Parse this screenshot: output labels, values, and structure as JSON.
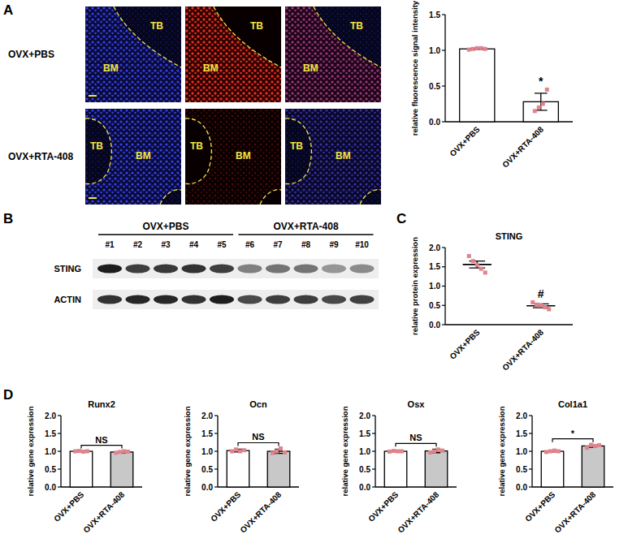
{
  "chart_data": [
    {
      "type": "bar",
      "ylabel": "relative fluorescence signal intensity",
      "categories": [
        "OVX+PBS",
        "OVX+RTA-408"
      ],
      "values": [
        1.02,
        0.28
      ],
      "errors": [
        0.01,
        0.12
      ],
      "points": [
        [
          1.01,
          1.02,
          1.03,
          1.03,
          1.02
        ],
        [
          0.15,
          0.2,
          0.25,
          0.45
        ]
      ],
      "colors": [
        "#ffffff",
        "#ffffff"
      ],
      "color": "#e0848c",
      "marker": "square",
      "ylim": [
        0,
        1.5
      ],
      "yticks": [
        {
          "value": 0,
          "label": "0.0"
        },
        {
          "value": 0.5,
          "label": "0.5"
        },
        {
          "value": 1,
          "label": "1.0"
        },
        {
          "value": 1.5,
          "label": "1.5"
        }
      ],
      "annotation": {
        "text": "*",
        "categories": [
          "OVX+RTA-408"
        ]
      }
    },
    {
      "type": "scatter",
      "title": "STING",
      "ylabel": "relative protein expression",
      "categories": [
        "OVX+PBS",
        "OVX+RTA-408"
      ],
      "values": [
        1.56,
        0.49
      ],
      "errors": [
        0.09,
        0.05
      ],
      "points": [
        [
          1.78,
          1.65,
          1.55,
          1.45,
          1.35
        ],
        [
          0.58,
          0.52,
          0.5,
          0.45,
          0.4
        ]
      ],
      "color": "#e0848c",
      "marker": "square",
      "ylim": [
        0,
        2
      ],
      "yticks": [
        {
          "value": 0,
          "label": "0.0"
        },
        {
          "value": 0.5,
          "label": "0.5"
        },
        {
          "value": 1,
          "label": "1.0"
        },
        {
          "value": 1.5,
          "label": "1.5"
        },
        {
          "value": 2,
          "label": "2.0"
        }
      ],
      "annotation": {
        "text": "#",
        "categories": [
          "OVX+RTA-408"
        ]
      }
    },
    {
      "type": "bar",
      "title": "Runx2",
      "ylabel": "relative gene expression",
      "categories": [
        "OVX+PBS",
        "OVX+RTA-408"
      ],
      "values": [
        1.0,
        0.98
      ],
      "errors": [
        0.01,
        0.03
      ],
      "points": [
        [
          1.0,
          1.01,
          0.99,
          1.0
        ],
        [
          0.96,
          0.98,
          1.0,
          0.99
        ]
      ],
      "colors": [
        "#ffffff",
        "#c8c8c8"
      ],
      "color": "#e0848c",
      "marker": "square",
      "ylim": [
        0,
        2
      ],
      "yticks": [
        {
          "value": 0,
          "label": "0.0"
        },
        {
          "value": 0.5,
          "label": "0.5"
        },
        {
          "value": 1,
          "label": "1.0"
        },
        {
          "value": 1.5,
          "label": "1.5"
        },
        {
          "value": 2,
          "label": "2.0"
        }
      ],
      "annotation": {
        "text": "NS",
        "categories": [
          "OVX+PBS",
          "OVX+RTA-408"
        ]
      }
    },
    {
      "type": "bar",
      "title": "Ocn",
      "ylabel": "relative gene expression",
      "categories": [
        "OVX+PBS",
        "OVX+RTA-408"
      ],
      "values": [
        1.02,
        1.0
      ],
      "errors": [
        0.04,
        0.06
      ],
      "points": [
        [
          1.0,
          1.05,
          1.0,
          1.03
        ],
        [
          0.95,
          1.0,
          1.08,
          0.97
        ]
      ],
      "colors": [
        "#ffffff",
        "#c8c8c8"
      ],
      "color": "#e0848c",
      "marker": "square",
      "ylim": [
        0,
        2
      ],
      "yticks": [
        {
          "value": 0,
          "label": "0.0"
        },
        {
          "value": 0.5,
          "label": "0.5"
        },
        {
          "value": 1,
          "label": "1.0"
        },
        {
          "value": 1.5,
          "label": "1.5"
        },
        {
          "value": 2,
          "label": "2.0"
        }
      ],
      "annotation": {
        "text": "NS",
        "categories": [
          "OVX+PBS",
          "OVX+RTA-408"
        ]
      }
    },
    {
      "type": "bar",
      "title": "Osx",
      "ylabel": "relative gene expression",
      "categories": [
        "OVX+PBS",
        "OVX+RTA-408"
      ],
      "values": [
        1.0,
        1.01
      ],
      "errors": [
        0.02,
        0.05
      ],
      "points": [
        [
          0.99,
          1.01,
          1.0,
          1.0
        ],
        [
          0.97,
          1.0,
          1.05,
          1.02
        ]
      ],
      "colors": [
        "#ffffff",
        "#c8c8c8"
      ],
      "color": "#e0848c",
      "marker": "square",
      "ylim": [
        0,
        2
      ],
      "yticks": [
        {
          "value": 0,
          "label": "0.0"
        },
        {
          "value": 0.5,
          "label": "0.5"
        },
        {
          "value": 1,
          "label": "1.0"
        },
        {
          "value": 1.5,
          "label": "1.5"
        },
        {
          "value": 2,
          "label": "2.0"
        }
      ],
      "annotation": {
        "text": "NS",
        "categories": [
          "OVX+PBS",
          "OVX+RTA-408"
        ]
      }
    },
    {
      "type": "bar",
      "title": "Col1a1",
      "ylabel": "relative gene expression",
      "categories": [
        "OVX+PBS",
        "OVX+RTA-408"
      ],
      "values": [
        1.0,
        1.15
      ],
      "errors": [
        0.02,
        0.04
      ],
      "points": [
        [
          0.98,
          1.0,
          1.02,
          1.0
        ],
        [
          1.1,
          1.18,
          1.15,
          1.17
        ]
      ],
      "colors": [
        "#ffffff",
        "#c8c8c8"
      ],
      "color": "#e0848c",
      "marker": "square",
      "ylim": [
        0,
        2
      ],
      "yticks": [
        {
          "value": 0,
          "label": "0.0"
        },
        {
          "value": 0.5,
          "label": "0.5"
        },
        {
          "value": 1,
          "label": "1.0"
        },
        {
          "value": 1.5,
          "label": "1.5"
        },
        {
          "value": 2,
          "label": "2.0"
        }
      ],
      "annotation": {
        "text": "*",
        "categories": [
          "OVX+PBS",
          "OVX+RTA-408"
        ]
      }
    }
  ],
  "panel_labels": [
    "A",
    "B",
    "C",
    "D"
  ],
  "micrograph": {
    "rows": [
      "OVX+PBS",
      "OVX+RTA-408"
    ],
    "region_labels": [
      "TB",
      "BM"
    ]
  },
  "blot": {
    "groups": [
      "OVX+PBS",
      "OVX+RTA-408"
    ],
    "lanes": [
      "#1",
      "#2",
      "#3",
      "#4",
      "#5",
      "#6",
      "#7",
      "#8",
      "#9",
      "#10"
    ],
    "proteins": [
      "STING",
      "ACTIN"
    ],
    "intensity": [
      [
        0.95,
        0.8,
        0.82,
        0.85,
        0.8,
        0.5,
        0.55,
        0.55,
        0.4,
        0.45
      ],
      [
        0.85,
        0.9,
        0.9,
        0.85,
        0.95,
        0.75,
        0.8,
        0.8,
        0.75,
        0.78
      ]
    ]
  }
}
